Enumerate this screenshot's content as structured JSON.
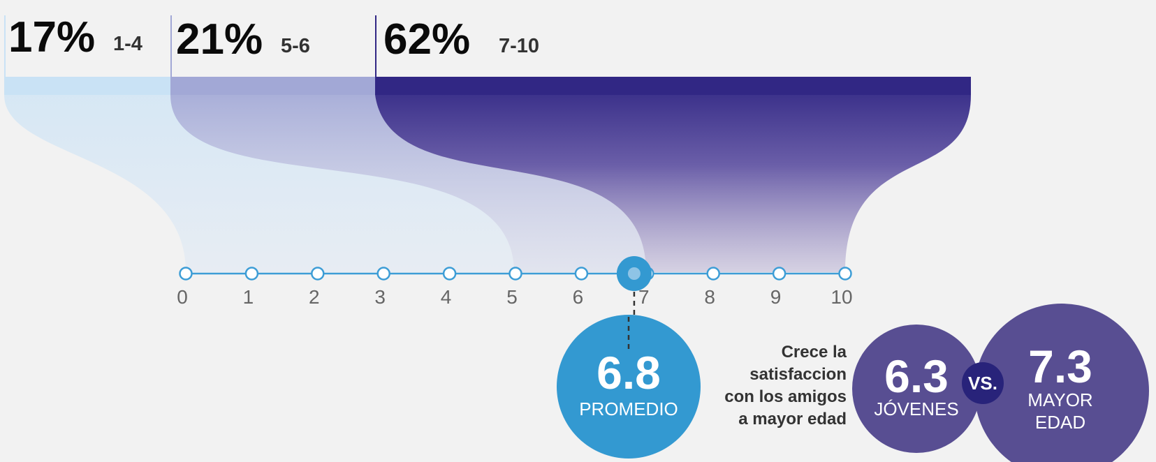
{
  "chart_data": {
    "type": "bar",
    "title": "",
    "categories": [
      "1-4",
      "5-6",
      "7-10"
    ],
    "values": [
      17,
      21,
      62
    ],
    "value_labels": [
      "17%",
      "21%",
      "62%"
    ],
    "category_colors": [
      "#c9e2f5",
      "#a2a8d6",
      "#312784"
    ],
    "scale": {
      "ticks": [
        "0",
        "1",
        "2",
        "3",
        "4",
        "5",
        "6",
        "7",
        "8",
        "9",
        "10"
      ],
      "min": 0,
      "max": 10,
      "line_color": "#3d9dd6"
    },
    "average": {
      "value": 6.8,
      "label": "6.8",
      "caption": "PROMEDIO",
      "color": "#3399d1"
    },
    "comparison": {
      "note_lines": [
        "Crece la",
        "satisfaccion",
        "con los amigos",
        "a mayor edad"
      ],
      "young": {
        "value": 6.3,
        "label": "6.3",
        "caption_lines": [
          "JÓVENES"
        ]
      },
      "older": {
        "value": 7.3,
        "label": "7.3",
        "caption_lines": [
          "MAYOR",
          "EDAD"
        ]
      },
      "vs_label": "VS.",
      "circle_color": "#584e92",
      "vs_color": "#28237a"
    }
  }
}
